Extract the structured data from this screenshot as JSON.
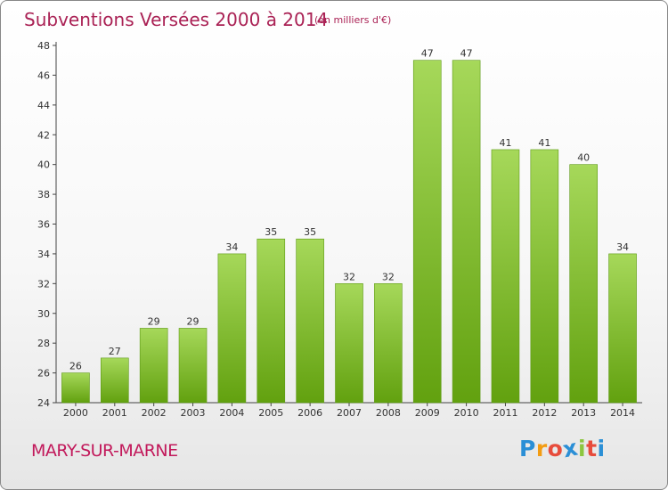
{
  "chart_data": {
    "type": "bar",
    "title": "Subventions Versées 2000 à 2014",
    "subtitle": "(en milliers d'€)",
    "categories": [
      "2000",
      "2001",
      "2002",
      "2003",
      "2004",
      "2005",
      "2006",
      "2007",
      "2008",
      "2009",
      "2010",
      "2011",
      "2012",
      "2013",
      "2014"
    ],
    "values": [
      26,
      27,
      29,
      29,
      34,
      35,
      35,
      32,
      32,
      47,
      47,
      41,
      41,
      40,
      34
    ],
    "ylim": [
      24,
      48
    ],
    "yticks": [
      24,
      26,
      28,
      30,
      32,
      34,
      36,
      38,
      40,
      42,
      44,
      46,
      48
    ],
    "grid": false,
    "bar_color": "#8cc63f"
  },
  "footer": {
    "place": "MARY-SUR-MARNE"
  },
  "brand": {
    "name": "Proxiti",
    "letters": [
      "P",
      "r",
      "o",
      "x",
      "i",
      "t",
      "i"
    ],
    "colors": [
      "#2b8fd6",
      "#f39c12",
      "#e74c3c",
      "#2b8fd6",
      "#8cc63f",
      "#e74c3c",
      "#2b8fd6"
    ]
  }
}
